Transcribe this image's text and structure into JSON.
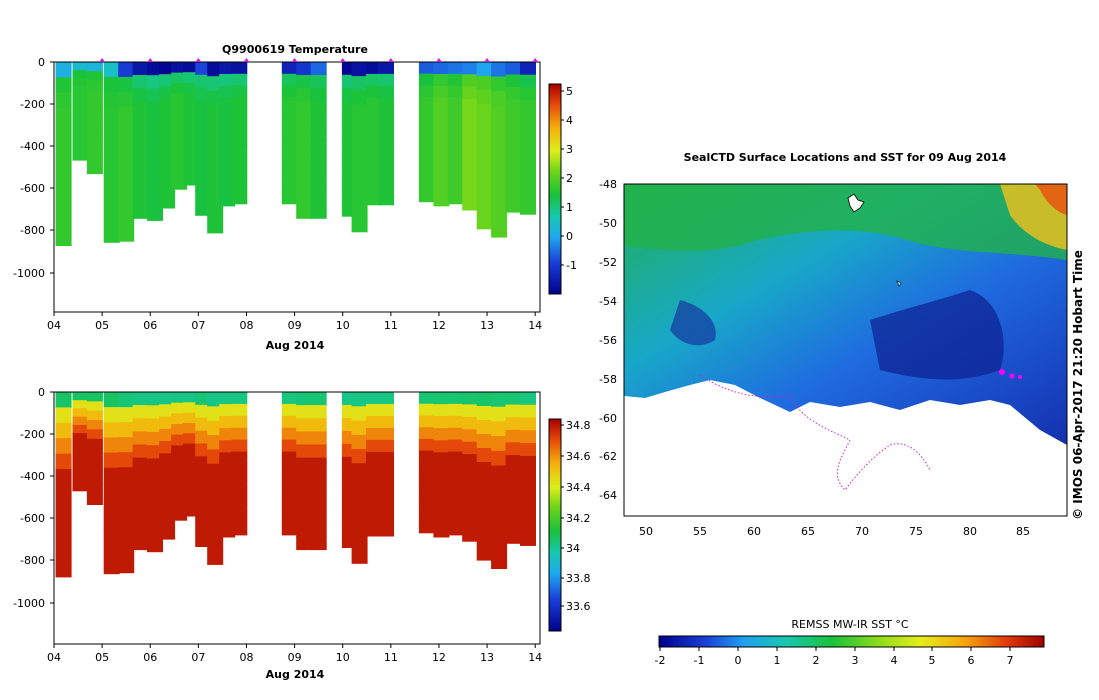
{
  "chart_data": [
    {
      "type": "heatmap",
      "title": "Q9900619  Temperature",
      "xlabel": "Aug 2014",
      "ylabel": "",
      "x_ticks": [
        "04",
        "05",
        "06",
        "07",
        "08",
        "09",
        "10",
        "11",
        "12",
        "13",
        "14"
      ],
      "y_ticks": [
        "0",
        "-200",
        "-400",
        "-600",
        "-800",
        "-1000"
      ],
      "ylim": [
        -1200,
        0
      ],
      "xlim": [
        4,
        14.1
      ],
      "colorbar": {
        "ticks": [
          "5",
          "4",
          "3",
          "2",
          "1",
          "0",
          "-1"
        ],
        "range": [
          -1.8,
          5.3
        ]
      },
      "profiles": [
        {
          "day": 4.2,
          "depth": 880,
          "surface": 0.3,
          "deep": 1.8
        },
        {
          "day": 4.55,
          "depth": 470,
          "surface": 0.5,
          "deep": 1.7
        },
        {
          "day": 4.85,
          "depth": 535,
          "surface": 0.4,
          "deep": 1.8
        },
        {
          "day": 5.2,
          "depth": 865,
          "surface": 0.6,
          "deep": 1.7
        },
        {
          "day": 5.5,
          "depth": 860,
          "surface": -0.8,
          "deep": 1.8
        },
        {
          "day": 5.8,
          "depth": 750,
          "surface": -1.4,
          "deep": 1.6
        },
        {
          "day": 6.1,
          "depth": 760,
          "surface": -1.6,
          "deep": 1.5
        },
        {
          "day": 6.35,
          "depth": 700,
          "surface": -1.7,
          "deep": 1.6
        },
        {
          "day": 6.6,
          "depth": 610,
          "surface": -1.5,
          "deep": 1.7
        },
        {
          "day": 6.85,
          "depth": 590,
          "surface": -1.6,
          "deep": 1.6
        },
        {
          "day": 7.1,
          "depth": 735,
          "surface": -0.7,
          "deep": 1.5
        },
        {
          "day": 7.35,
          "depth": 820,
          "surface": -1.6,
          "deep": 1.6
        },
        {
          "day": 7.6,
          "depth": 690,
          "surface": -1.4,
          "deep": 1.5
        },
        {
          "day": 7.85,
          "depth": 680,
          "surface": -1.5,
          "deep": 1.6
        },
        {
          "day": 8.9,
          "depth": 680,
          "surface": -1.2,
          "deep": 1.7
        },
        {
          "day": 9.2,
          "depth": 750,
          "surface": -0.9,
          "deep": 1.8
        },
        {
          "day": 9.5,
          "depth": 750,
          "surface": -0.4,
          "deep": 1.6
        },
        {
          "day": 10.15,
          "depth": 740,
          "surface": -1.7,
          "deep": 1.6
        },
        {
          "day": 10.35,
          "depth": 815,
          "surface": -1.5,
          "deep": 1.7
        },
        {
          "day": 10.65,
          "depth": 685,
          "surface": -1.6,
          "deep": 1.7
        },
        {
          "day": 10.9,
          "depth": 685,
          "surface": -1.4,
          "deep": 1.6
        },
        {
          "day": 11.75,
          "depth": 670,
          "surface": -0.5,
          "deep": 1.8
        },
        {
          "day": 12.05,
          "depth": 690,
          "surface": -0.4,
          "deep": 2.1
        },
        {
          "day": 12.35,
          "depth": 680,
          "surface": -0.3,
          "deep": 1.9
        },
        {
          "day": 12.65,
          "depth": 710,
          "surface": -0.2,
          "deep": 2.4
        },
        {
          "day": 12.95,
          "depth": 800,
          "surface": 0.1,
          "deep": 2.3
        },
        {
          "day": 13.25,
          "depth": 840,
          "surface": -0.3,
          "deep": 2.1
        },
        {
          "day": 13.55,
          "depth": 720,
          "surface": -0.5,
          "deep": 1.9
        },
        {
          "day": 13.85,
          "depth": 730,
          "surface": -1.2,
          "deep": 1.8
        }
      ]
    },
    {
      "type": "heatmap",
      "title": "",
      "xlabel": "Aug 2014",
      "ylabel": "",
      "x_ticks": [
        "04",
        "05",
        "06",
        "07",
        "08",
        "09",
        "10",
        "11",
        "12",
        "13",
        "14"
      ],
      "y_ticks": [
        "0",
        "-200",
        "-400",
        "-600",
        "-800",
        "-1000"
      ],
      "ylim": [
        -1200,
        0
      ],
      "xlim": [
        4,
        14.1
      ],
      "colorbar": {
        "ticks": [
          "34.8",
          "34.6",
          "34.4",
          "34.2",
          "34",
          "33.8",
          "33.6"
        ],
        "range": [
          33.45,
          34.85
        ]
      }
    },
    {
      "type": "heatmap",
      "title": "SealCTD Surface Locations and SST for 09 Aug 2014",
      "xlabel": "",
      "ylabel": "",
      "x_ticks": [
        "50",
        "55",
        "60",
        "65",
        "70",
        "75",
        "80",
        "85"
      ],
      "y_ticks": [
        "-48",
        "-50",
        "-52",
        "-54",
        "-56",
        "-58",
        "-60",
        "-62",
        "-64"
      ],
      "xlim": [
        48,
        89
      ],
      "ylim": [
        -65,
        -48
      ],
      "colorbar": {
        "label": "REMSS MW-IR SST °C",
        "ticks": [
          "-2",
          "-1",
          "0",
          "1",
          "2",
          "3",
          "4",
          "5",
          "6",
          "7"
        ],
        "range": [
          -2,
          8
        ]
      }
    }
  ],
  "watermark": "© IMOS 06-Apr-2017 21:20 Hobart Time"
}
